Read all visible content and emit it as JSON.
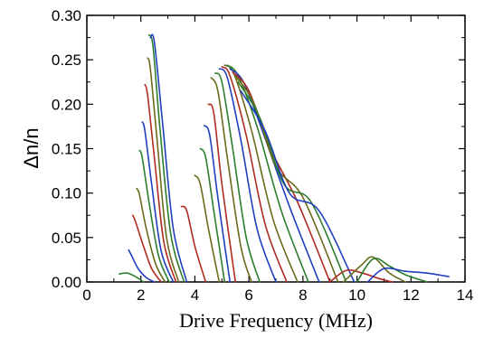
{
  "chart_data": {
    "type": "line",
    "title": "",
    "xlabel": "Drive Frequency (MHz)",
    "ylabel": "Δn/n",
    "xlim": [
      0,
      14
    ],
    "ylim": [
      0,
      0.3
    ],
    "x_ticks": [
      0,
      2,
      4,
      6,
      8,
      10,
      12,
      14
    ],
    "y_ticks": [
      0.0,
      0.05,
      0.1,
      0.15,
      0.2,
      0.25,
      0.3
    ],
    "x_tick_labels": [
      "0",
      "2",
      "4",
      "6",
      "8",
      "10",
      "12",
      "14"
    ],
    "y_tick_labels": [
      "0.00",
      "0.05",
      "0.10",
      "0.15",
      "0.20",
      "0.25",
      "0.30"
    ],
    "grid": false,
    "legend": "none",
    "series_colors": [
      "#2e7d2e",
      "#1f3fbf",
      "#b02a1e",
      "#6b6b1a"
    ],
    "series": [
      {
        "x": [
          1.2,
          1.5,
          1.8,
          2.1
        ],
        "y": [
          0.009,
          0.01,
          0.006,
          0.0
        ]
      },
      {
        "x": [
          1.55,
          1.65,
          1.9,
          2.2,
          2.5
        ],
        "y": [
          0.036,
          0.03,
          0.015,
          0.005,
          0.0
        ]
      },
      {
        "x": [
          1.7,
          1.8,
          2.1,
          2.4,
          2.75
        ],
        "y": [
          0.075,
          0.068,
          0.04,
          0.015,
          0.0
        ]
      },
      {
        "x": [
          1.85,
          1.95,
          2.2,
          2.55,
          2.9
        ],
        "y": [
          0.105,
          0.098,
          0.06,
          0.02,
          0.0
        ]
      },
      {
        "x": [
          1.95,
          2.05,
          2.3,
          2.65,
          3.05
        ],
        "y": [
          0.148,
          0.14,
          0.09,
          0.03,
          0.0
        ]
      },
      {
        "x": [
          2.05,
          2.15,
          2.4,
          2.75,
          3.2
        ],
        "y": [
          0.18,
          0.17,
          0.11,
          0.035,
          0.0
        ]
      },
      {
        "x": [
          2.15,
          2.25,
          2.5,
          2.85,
          3.3
        ],
        "y": [
          0.222,
          0.21,
          0.14,
          0.045,
          0.0
        ]
      },
      {
        "x": [
          2.25,
          2.35,
          2.6,
          2.95,
          3.4
        ],
        "y": [
          0.252,
          0.24,
          0.16,
          0.05,
          0.0
        ]
      },
      {
        "x": [
          2.3,
          2.45,
          2.7,
          3.1,
          3.6
        ],
        "y": [
          0.278,
          0.265,
          0.175,
          0.055,
          0.0
        ]
      },
      {
        "x": [
          2.35,
          2.5,
          2.8,
          3.2,
          3.7
        ],
        "y": [
          0.275,
          0.27,
          0.18,
          0.06,
          0.0
        ]
      },
      {
        "x": [
          3.5,
          3.7,
          4.0,
          4.4
        ],
        "y": [
          0.085,
          0.08,
          0.04,
          0.0
        ]
      },
      {
        "x": [
          4.0,
          4.2,
          4.5,
          4.9
        ],
        "y": [
          0.12,
          0.11,
          0.06,
          0.0
        ]
      },
      {
        "x": [
          4.2,
          4.4,
          4.7,
          5.1
        ],
        "y": [
          0.15,
          0.14,
          0.08,
          0.0
        ]
      },
      {
        "x": [
          4.35,
          4.55,
          4.85,
          5.3
        ],
        "y": [
          0.176,
          0.165,
          0.095,
          0.0
        ]
      },
      {
        "x": [
          4.5,
          4.7,
          5.0,
          5.5
        ],
        "y": [
          0.2,
          0.19,
          0.11,
          0.0
        ]
      },
      {
        "x": [
          4.6,
          4.85,
          5.2,
          5.7,
          6.1
        ],
        "y": [
          0.23,
          0.215,
          0.14,
          0.04,
          0.0
        ]
      },
      {
        "x": [
          4.75,
          5.0,
          5.4,
          5.9,
          6.4
        ],
        "y": [
          0.235,
          0.225,
          0.15,
          0.05,
          0.0
        ]
      },
      {
        "x": [
          4.9,
          5.2,
          5.7,
          6.3,
          7.0
        ],
        "y": [
          0.24,
          0.23,
          0.16,
          0.06,
          0.0
        ]
      },
      {
        "x": [
          5.0,
          5.3,
          5.9,
          6.6,
          7.4
        ],
        "y": [
          0.242,
          0.232,
          0.165,
          0.065,
          0.0
        ]
      },
      {
        "x": [
          5.1,
          5.45,
          6.1,
          6.9,
          7.8
        ],
        "y": [
          0.244,
          0.234,
          0.17,
          0.07,
          0.0
        ]
      },
      {
        "x": [
          5.2,
          5.6,
          6.3,
          7.2,
          8.2
        ],
        "y": [
          0.244,
          0.232,
          0.175,
          0.08,
          0.0
        ]
      },
      {
        "x": [
          5.3,
          5.8,
          6.5,
          7.5,
          8.6
        ],
        "y": [
          0.24,
          0.225,
          0.17,
          0.085,
          0.0
        ]
      },
      {
        "x": [
          5.4,
          6.0,
          6.8,
          7.8,
          9.0
        ],
        "y": [
          0.236,
          0.215,
          0.15,
          0.09,
          0.0
        ]
      },
      {
        "x": [
          5.5,
          6.2,
          7.0,
          8.0,
          9.3
        ],
        "y": [
          0.232,
          0.2,
          0.13,
          0.095,
          0.0
        ]
      },
      {
        "x": [
          5.6,
          6.4,
          7.3,
          8.3,
          9.6
        ],
        "y": [
          0.225,
          0.185,
          0.11,
          0.09,
          0.0
        ]
      },
      {
        "x": [
          5.7,
          6.6,
          7.5,
          8.6,
          9.9
        ],
        "y": [
          0.215,
          0.17,
          0.1,
          0.08,
          0.0
        ]
      },
      {
        "x": [
          9.0,
          9.6,
          10.2,
          10.8,
          11.3
        ],
        "y": [
          0.0,
          0.013,
          0.01,
          0.004,
          0.0
        ]
      },
      {
        "x": [
          9.5,
          10.2,
          10.6,
          11.2,
          11.8
        ],
        "y": [
          0.0,
          0.02,
          0.028,
          0.01,
          0.0
        ]
      },
      {
        "x": [
          10.0,
          10.6,
          11.2,
          11.8,
          12.6
        ],
        "y": [
          0.0,
          0.026,
          0.018,
          0.008,
          0.0
        ]
      },
      {
        "x": [
          10.4,
          11.0,
          11.8,
          12.6,
          13.4
        ],
        "y": [
          0.0,
          0.015,
          0.012,
          0.01,
          0.006
        ]
      }
    ]
  }
}
